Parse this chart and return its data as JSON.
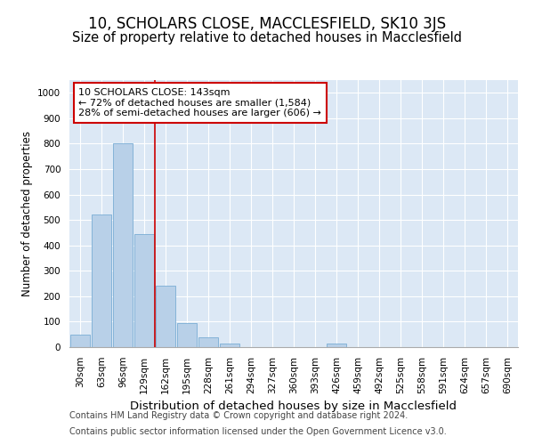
{
  "title": "10, SCHOLARS CLOSE, MACCLESFIELD, SK10 3JS",
  "subtitle": "Size of property relative to detached houses in Macclesfield",
  "xlabel": "Distribution of detached houses by size in Macclesfield",
  "ylabel": "Number of detached properties",
  "categories": [
    "30sqm",
    "63sqm",
    "96sqm",
    "129sqm",
    "162sqm",
    "195sqm",
    "228sqm",
    "261sqm",
    "294sqm",
    "327sqm",
    "360sqm",
    "393sqm",
    "426sqm",
    "459sqm",
    "492sqm",
    "525sqm",
    "558sqm",
    "591sqm",
    "624sqm",
    "657sqm",
    "690sqm"
  ],
  "values": [
    50,
    520,
    800,
    445,
    240,
    95,
    40,
    15,
    0,
    0,
    0,
    0,
    15,
    0,
    0,
    0,
    0,
    0,
    0,
    0,
    0
  ],
  "bar_color": "#b8d0e8",
  "bar_edge_color": "#7aadd4",
  "background_color": "#dce8f5",
  "grid_color": "#ffffff",
  "annotation_box_text": "10 SCHOLARS CLOSE: 143sqm\n← 72% of detached houses are smaller (1,584)\n28% of semi-detached houses are larger (606) →",
  "annotation_box_color": "#ffffff",
  "annotation_box_edge_color": "#cc0000",
  "vline_color": "#cc0000",
  "vline_x": 3.5,
  "ylim": [
    0,
    1050
  ],
  "yticks": [
    0,
    100,
    200,
    300,
    400,
    500,
    600,
    700,
    800,
    900,
    1000
  ],
  "footnote1": "Contains HM Land Registry data © Crown copyright and database right 2024.",
  "footnote2": "Contains public sector information licensed under the Open Government Licence v3.0.",
  "title_fontsize": 12,
  "subtitle_fontsize": 10.5,
  "xlabel_fontsize": 9.5,
  "ylabel_fontsize": 8.5,
  "tick_fontsize": 7.5,
  "annotation_fontsize": 8,
  "footnote_fontsize": 7
}
